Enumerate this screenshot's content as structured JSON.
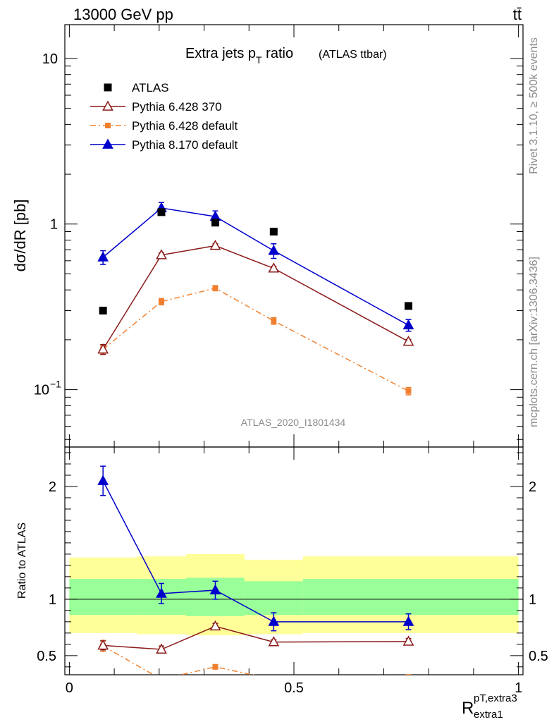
{
  "header": {
    "energy_label": "13000 GeV pp",
    "process_label": "tt̄"
  },
  "side_labels": {
    "rivet": "Rivet 3.1.10, ≥ 500k events",
    "mcplots": "mcplots.cern.ch [arXiv:1306.3436]"
  },
  "chart_data": {
    "type": "scatter",
    "title": "Extra jets p",
    "title_sub": "T",
    "title_rest": " ratio",
    "title_note": "(ATLAS ttbar)",
    "analysis_label": "ATLAS_2020_I1801434",
    "xlabel": "R",
    "xlabel_sup": "pT,extra3",
    "xlabel_sub": "extra1",
    "ylabel": "dσ/dR [pb]",
    "ylabel_ratio": "Ratio to ATLAS",
    "xlim": [
      -0.01,
      1.01
    ],
    "ylim_main": [
      0.045,
      16
    ],
    "ylim_ratio": [
      0.33,
      2.35
    ],
    "y_scale_main": "log",
    "legend_position": "top-left",
    "x_ticks": [
      {
        "v": 0,
        "label": "0"
      },
      {
        "v": 0.5,
        "label": "0.5"
      },
      {
        "v": 1,
        "label": "1"
      }
    ],
    "y_ticks_main": [
      {
        "v": 10,
        "label": "10"
      },
      {
        "v": 1,
        "label": "1"
      },
      {
        "v": 0.1,
        "label": "10",
        "sup": "−1"
      }
    ],
    "y_ticks_ratio": [
      {
        "v": 2,
        "label": "2"
      },
      {
        "v": 1,
        "label": "1"
      },
      {
        "v": 0.5,
        "label": "0.5"
      }
    ],
    "bands": [
      {
        "x0": 0.0,
        "x1": 0.15,
        "g_lo": 0.86,
        "g_hi": 1.18,
        "y_lo": 0.7,
        "y_hi": 1.37
      },
      {
        "x0": 0.15,
        "x1": 0.26,
        "g_lo": 0.86,
        "g_hi": 1.18,
        "y_lo": 0.69,
        "y_hi": 1.38
      },
      {
        "x0": 0.26,
        "x1": 0.39,
        "g_lo": 0.85,
        "g_hi": 1.19,
        "y_lo": 0.68,
        "y_hi": 1.4
      },
      {
        "x0": 0.39,
        "x1": 0.52,
        "g_lo": 0.86,
        "g_hi": 1.16,
        "y_lo": 0.69,
        "y_hi": 1.35
      },
      {
        "x0": 0.52,
        "x1": 1.0,
        "g_lo": 0.86,
        "g_hi": 1.18,
        "y_lo": 0.7,
        "y_hi": 1.38
      }
    ],
    "series": [
      {
        "name": "ATLAS",
        "color": "#000000",
        "marker": "square",
        "line": "none",
        "x": [
          0.075,
          0.205,
          0.325,
          0.455,
          0.755
        ],
        "y": [
          0.3,
          1.18,
          1.02,
          0.9,
          0.32
        ],
        "yerr": [
          0,
          0,
          0,
          0,
          0
        ],
        "ratio": [
          1,
          1,
          1,
          1,
          1
        ],
        "ratio_err": [
          0,
          0,
          0,
          0,
          0
        ]
      },
      {
        "name": "Pythia 6.428 370",
        "color": "#8b1a1a",
        "marker": "triangle-open",
        "line": "solid",
        "x": [
          0.075,
          0.205,
          0.325,
          0.455,
          0.755
        ],
        "y": [
          0.175,
          0.65,
          0.74,
          0.54,
          0.195
        ],
        "yerr": [
          0.012,
          0.02,
          0.02,
          0.015,
          0.006
        ],
        "ratio": [
          0.59,
          0.555,
          0.76,
          0.62,
          0.625
        ],
        "ratio_err": [
          0.04,
          0.03,
          0.025,
          0.02,
          0.025
        ]
      },
      {
        "name": "Pythia 6.428 default",
        "color": "#f08030",
        "marker": "square",
        "line": "dashdot",
        "x": [
          0.075,
          0.205,
          0.325,
          0.455,
          0.755
        ],
        "y": [
          0.175,
          0.34,
          0.41,
          0.26,
          0.098
        ],
        "yerr": [
          0.01,
          0.015,
          0.015,
          0.012,
          0.005
        ],
        "ratio": [
          0.585,
          0.29,
          0.4,
          0.29,
          0.31
        ],
        "ratio_err": [
          0.05,
          0.02,
          0.02,
          0.02,
          0.02
        ]
      },
      {
        "name": "Pythia 8.170 default",
        "color": "#0000cc",
        "marker": "triangle",
        "line": "solid",
        "x": [
          0.075,
          0.205,
          0.325,
          0.455,
          0.755
        ],
        "y": [
          0.63,
          1.25,
          1.11,
          0.69,
          0.245
        ],
        "yerr": [
          0.06,
          0.1,
          0.09,
          0.07,
          0.02
        ],
        "ratio": [
          2.05,
          1.05,
          1.08,
          0.8,
          0.8
        ],
        "ratio_err": [
          0.13,
          0.09,
          0.08,
          0.08,
          0.07
        ]
      }
    ]
  }
}
